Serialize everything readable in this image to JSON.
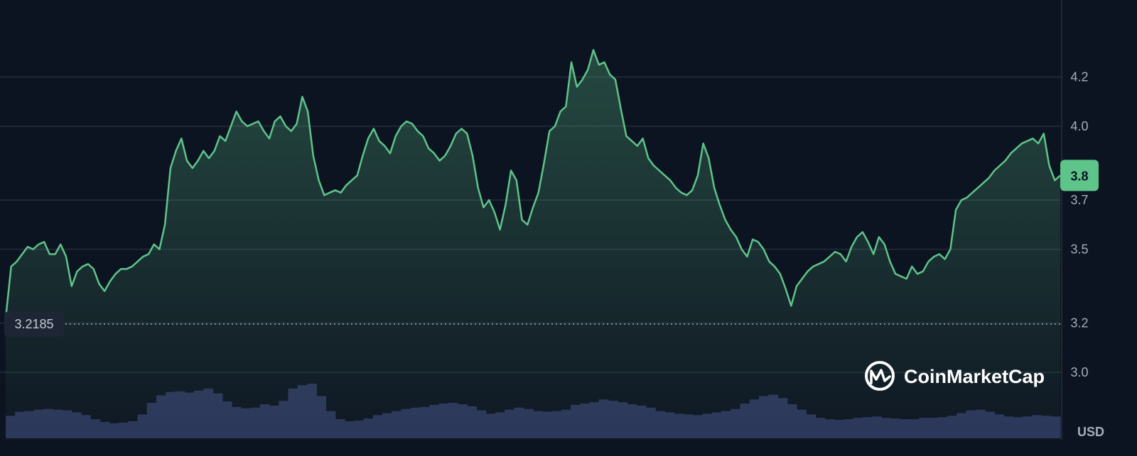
{
  "chart_data": {
    "type": "area",
    "currency_label": "USD",
    "watermark": "CoinMarketCap",
    "y_ticks": [
      "3.0",
      "3.2",
      "3.5",
      "3.7",
      "4.0",
      "4.2"
    ],
    "ylim": [
      2.85,
      4.35
    ],
    "grid": true,
    "open_price": 3.2185,
    "open_price_label": "3.2185",
    "current_price": 3.8,
    "current_price_label": "3.8",
    "colors": {
      "background": "#0d1421",
      "line": "#5ec48a",
      "volume": "#2b3459",
      "badge": "#5ec48a",
      "grid": "#262d3b"
    },
    "price_series": [
      3.22,
      3.43,
      3.45,
      3.48,
      3.51,
      3.5,
      3.52,
      3.53,
      3.48,
      3.48,
      3.52,
      3.47,
      3.35,
      3.41,
      3.43,
      3.44,
      3.42,
      3.36,
      3.33,
      3.37,
      3.4,
      3.42,
      3.42,
      3.43,
      3.45,
      3.47,
      3.48,
      3.52,
      3.5,
      3.6,
      3.83,
      3.9,
      3.95,
      3.86,
      3.83,
      3.86,
      3.9,
      3.87,
      3.9,
      3.96,
      3.94,
      4.0,
      4.06,
      4.02,
      4.0,
      4.01,
      4.02,
      3.98,
      3.95,
      4.02,
      4.04,
      4.0,
      3.98,
      4.01,
      4.12,
      4.06,
      3.88,
      3.78,
      3.72,
      3.73,
      3.74,
      3.73,
      3.76,
      3.78,
      3.8,
      3.88,
      3.95,
      3.99,
      3.94,
      3.92,
      3.89,
      3.96,
      4.0,
      4.02,
      4.01,
      3.98,
      3.96,
      3.91,
      3.89,
      3.86,
      3.88,
      3.92,
      3.97,
      3.99,
      3.97,
      3.88,
      3.75,
      3.67,
      3.7,
      3.65,
      3.58,
      3.68,
      3.82,
      3.78,
      3.62,
      3.6,
      3.67,
      3.73,
      3.85,
      3.98,
      4.0,
      4.06,
      4.08,
      4.26,
      4.16,
      4.19,
      4.23,
      4.31,
      4.25,
      4.26,
      4.21,
      4.19,
      4.07,
      3.96,
      3.94,
      3.92,
      3.95,
      3.87,
      3.84,
      3.82,
      3.8,
      3.78,
      3.75,
      3.73,
      3.72,
      3.74,
      3.8,
      3.93,
      3.87,
      3.75,
      3.68,
      3.62,
      3.58,
      3.55,
      3.5,
      3.47,
      3.54,
      3.53,
      3.5,
      3.45,
      3.43,
      3.4,
      3.34,
      3.27,
      3.35,
      3.38,
      3.41,
      3.43,
      3.44,
      3.45,
      3.47,
      3.49,
      3.48,
      3.45,
      3.51,
      3.55,
      3.57,
      3.53,
      3.48,
      3.55,
      3.52,
      3.45,
      3.4,
      3.39,
      3.38,
      3.43,
      3.4,
      3.41,
      3.45,
      3.47,
      3.48,
      3.46,
      3.5,
      3.66,
      3.7,
      3.71,
      3.73,
      3.75,
      3.77,
      3.79,
      3.82,
      3.84,
      3.86,
      3.89,
      3.91,
      3.93,
      3.94,
      3.95,
      3.93,
      3.97,
      3.84,
      3.78,
      3.8
    ],
    "volume_series": [
      0.33,
      0.39,
      0.4,
      0.42,
      0.43,
      0.42,
      0.41,
      0.38,
      0.34,
      0.28,
      0.24,
      0.22,
      0.23,
      0.25,
      0.35,
      0.52,
      0.63,
      0.68,
      0.69,
      0.67,
      0.7,
      0.73,
      0.66,
      0.54,
      0.46,
      0.44,
      0.45,
      0.5,
      0.48,
      0.55,
      0.73,
      0.78,
      0.8,
      0.62,
      0.4,
      0.28,
      0.25,
      0.26,
      0.29,
      0.34,
      0.37,
      0.4,
      0.43,
      0.45,
      0.46,
      0.49,
      0.51,
      0.52,
      0.5,
      0.47,
      0.41,
      0.36,
      0.38,
      0.42,
      0.45,
      0.43,
      0.4,
      0.39,
      0.4,
      0.42,
      0.49,
      0.51,
      0.53,
      0.57,
      0.55,
      0.53,
      0.5,
      0.48,
      0.45,
      0.4,
      0.38,
      0.36,
      0.35,
      0.34,
      0.36,
      0.38,
      0.4,
      0.43,
      0.51,
      0.57,
      0.62,
      0.64,
      0.59,
      0.5,
      0.42,
      0.35,
      0.3,
      0.28,
      0.27,
      0.28,
      0.3,
      0.31,
      0.32,
      0.3,
      0.29,
      0.28,
      0.28,
      0.3,
      0.3,
      0.31,
      0.33,
      0.37,
      0.41,
      0.42,
      0.39,
      0.35,
      0.32,
      0.31,
      0.32,
      0.34,
      0.33,
      0.32
    ]
  },
  "screen_time_frame": "",
  "annotations": []
}
